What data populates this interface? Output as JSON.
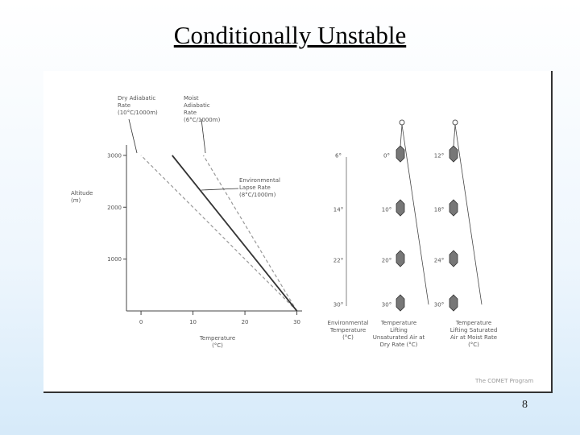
{
  "slide": {
    "title": "Conditionally Unstable",
    "page_number": "8",
    "credit": "The COMET Program"
  },
  "chart_data": {
    "type": "line",
    "x_label": "Temperature (°C)",
    "y_label": "Altitude (m)",
    "xlim": [
      -2.8,
      31
    ],
    "ylim": [
      0,
      3200
    ],
    "xticks": [
      0,
      10,
      20,
      30
    ],
    "yticks": [
      1000,
      2000,
      3000
    ],
    "series": [
      {
        "name": "Dry Adiabatic Rate (10°C/1000m)",
        "color": "#999999",
        "dashed": true,
        "x": [
          30,
          0
        ],
        "values": [
          0,
          3000
        ]
      },
      {
        "name": "Moist Adiabatic Rate (6°C/1000m)",
        "color": "#999999",
        "dashed": true,
        "x": [
          30,
          12
        ],
        "values": [
          0,
          3000
        ]
      },
      {
        "name": "Environmental Lapse Rate (8°C/1000m)",
        "color": "#333333",
        "dashed": false,
        "x": [
          30,
          6
        ],
        "values": [
          0,
          3000
        ]
      }
    ]
  },
  "diagram": {
    "columns": [
      {
        "label": "Environmental Temperature (°C)",
        "values": [
          "30°",
          "22°",
          "14°",
          "6°"
        ]
      },
      {
        "label": "Temperature Lifting Unsaturated Air at Dry Rate (°C)",
        "values": [
          "30°",
          "20°",
          "10°",
          "0°"
        ]
      },
      {
        "label": "Temperature Lifting Saturated Air at Moist Rate (°C)",
        "values": [
          "30°",
          "24°",
          "18°",
          "12°"
        ]
      }
    ]
  }
}
